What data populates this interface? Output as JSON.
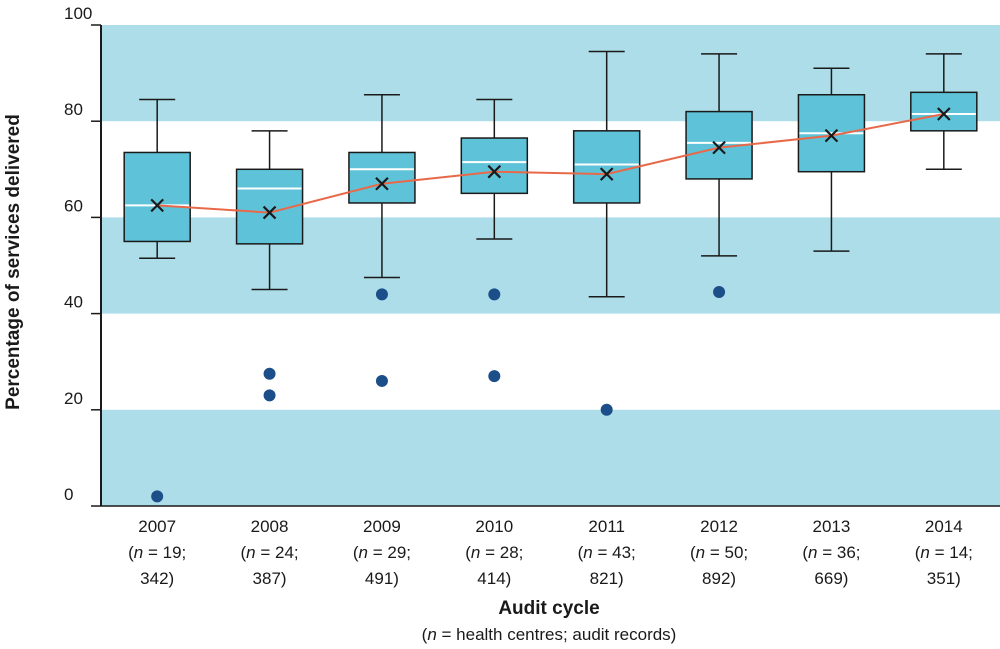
{
  "chart_data": {
    "type": "box",
    "xlabel": "Audit cycle",
    "xlabel_note": "(n = health centres; audit records)",
    "ylabel": "Percentage of services delivered",
    "ylim": [
      0,
      100
    ],
    "yticks": [
      0,
      20,
      40,
      60,
      80,
      100
    ],
    "bands": [
      [
        0,
        20
      ],
      [
        40,
        60
      ],
      [
        80,
        100
      ]
    ],
    "categories": [
      {
        "year": "2007",
        "line2": "(n = 19;",
        "line3": "342)"
      },
      {
        "year": "2008",
        "line2": "(n = 24;",
        "line3": "387)"
      },
      {
        "year": "2009",
        "line2": "(n = 29;",
        "line3": "491)"
      },
      {
        "year": "2010",
        "line2": "(n = 28;",
        "line3": "414)"
      },
      {
        "year": "2011",
        "line2": "(n = 43;",
        "line3": "821)"
      },
      {
        "year": "2012",
        "line2": "(n = 50;",
        "line3": "892)"
      },
      {
        "year": "2013",
        "line2": "(n = 36;",
        "line3": "669)"
      },
      {
        "year": "2014",
        "line2": "(n = 14;",
        "line3": "351)"
      }
    ],
    "boxes": [
      {
        "whisker_low": 51.5,
        "q1": 55.0,
        "median": 62.5,
        "q3": 73.5,
        "whisker_high": 84.5,
        "mean": 62.5,
        "outliers": [
          2
        ]
      },
      {
        "whisker_low": 45.0,
        "q1": 54.5,
        "median": 66.0,
        "q3": 70.0,
        "whisker_high": 78.0,
        "mean": 61.0,
        "outliers": [
          27.5,
          23
        ]
      },
      {
        "whisker_low": 47.5,
        "q1": 63.0,
        "median": 70.0,
        "q3": 73.5,
        "whisker_high": 85.5,
        "mean": 67.0,
        "outliers": [
          44,
          26
        ]
      },
      {
        "whisker_low": 55.5,
        "q1": 65.0,
        "median": 71.5,
        "q3": 76.5,
        "whisker_high": 84.5,
        "mean": 69.5,
        "outliers": [
          44,
          27
        ]
      },
      {
        "whisker_low": 43.5,
        "q1": 63.0,
        "median": 71.0,
        "q3": 78.0,
        "whisker_high": 94.5,
        "mean": 69.0,
        "outliers": [
          20
        ]
      },
      {
        "whisker_low": 52.0,
        "q1": 68.0,
        "median": 75.5,
        "q3": 82.0,
        "whisker_high": 94.0,
        "mean": 74.5,
        "outliers": [
          44.5
        ]
      },
      {
        "whisker_low": 53.0,
        "q1": 69.5,
        "median": 77.5,
        "q3": 85.5,
        "whisker_high": 91.0,
        "mean": 77.0,
        "outliers": []
      },
      {
        "whisker_low": 70.0,
        "q1": 78.0,
        "median": 81.5,
        "q3": 86.0,
        "whisker_high": 94.0,
        "mean": 81.5,
        "outliers": []
      }
    ],
    "colors": {
      "band": "#acdde8",
      "box_fill": "#5ec3d9",
      "box_stroke": "#1a1a1a",
      "median": "#ffffff",
      "mean_line": "#e8694a",
      "mean_marker": "#1a1a1a",
      "outlier": "#1c4e8a",
      "axis": "#1a1a1a"
    }
  }
}
